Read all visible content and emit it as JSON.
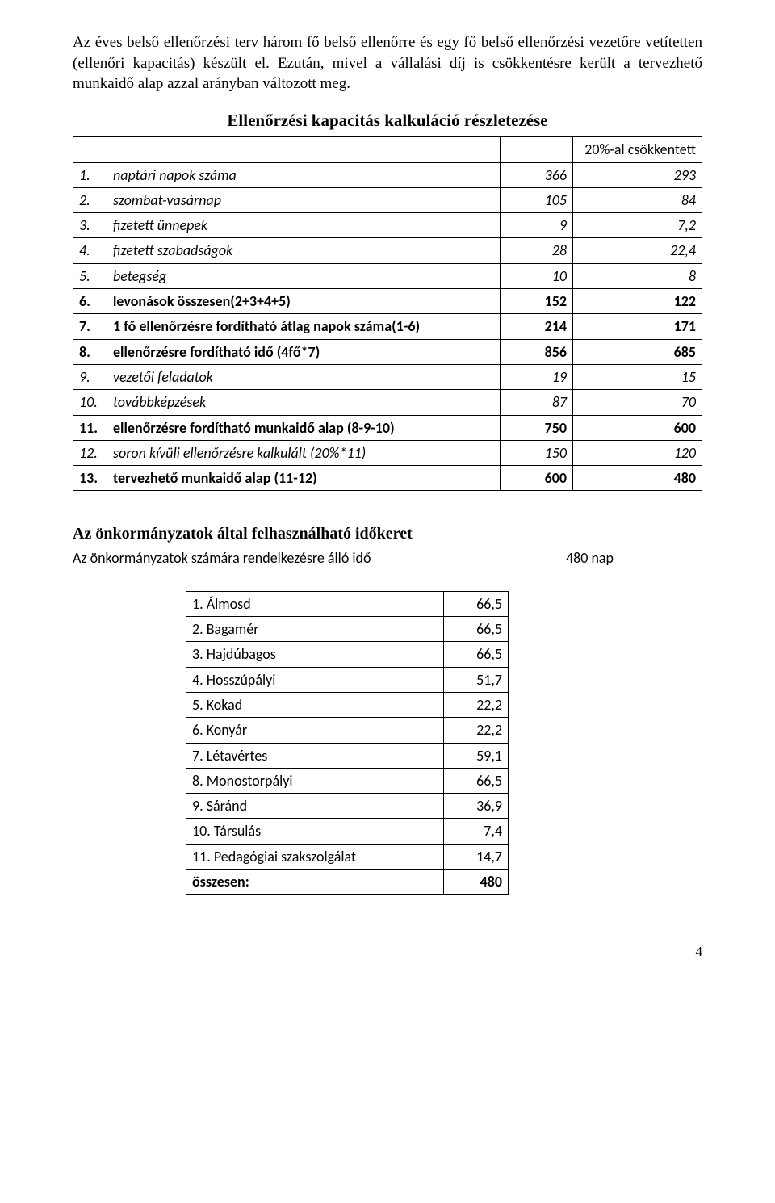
{
  "intro_p1": "Az éves belső ellenőrzési terv három fő belső ellenőrre és egy fő belső ellenőrzési vezetőre vetítetten (ellenőri kapacitás) készült el. Ezután, mivel a vállalási díj is csökkentésre került a tervezhető munkaidő alap azzal arányban változott meg.",
  "table1_title": "Ellenőrzési kapacitás kalkuláció részletezése",
  "table1_header_right": "20%-al csökkentett",
  "table1_rows": [
    {
      "n": "1.",
      "label": "naptári napok száma",
      "v1": "366",
      "v2": "293",
      "style": "italic"
    },
    {
      "n": "2.",
      "label": "szombat-vasárnap",
      "v1": "105",
      "v2": "84",
      "style": "italic"
    },
    {
      "n": "3.",
      "label": "fizetett ünnepek",
      "v1": "9",
      "v2": "7,2",
      "style": "italic"
    },
    {
      "n": "4.",
      "label": "fizetett szabadságok",
      "v1": "28",
      "v2": "22,4",
      "style": "italic"
    },
    {
      "n": "5.",
      "label": "betegség",
      "v1": "10",
      "v2": "8",
      "style": "italic"
    },
    {
      "n": "6.",
      "label": "levonások összesen(2+3+4+5)",
      "v1": "152",
      "v2": "122",
      "style": "bold"
    },
    {
      "n": "7.",
      "label": "1 fő ellenőrzésre fordítható átlag napok száma(1-6)",
      "v1": "214",
      "v2": "171",
      "style": "bold"
    },
    {
      "n": "8.",
      "label": "ellenőrzésre fordítható idő (4fő*7)",
      "v1": "856",
      "v2": "685",
      "style": "bold"
    },
    {
      "n": "9.",
      "label": "vezetői feladatok",
      "v1": "19",
      "v2": "15",
      "style": "italic"
    },
    {
      "n": "10.",
      "label": "továbbképzések",
      "v1": "87",
      "v2": "70",
      "style": "italic"
    },
    {
      "n": "11.",
      "label": "ellenőrzésre fordítható munkaidő alap (8-9-10)",
      "v1": "750",
      "v2": "600",
      "style": "bold"
    },
    {
      "n": "12.",
      "label": "soron kívüli ellenőrzésre kalkulált (20%*11)",
      "v1": "150",
      "v2": "120",
      "style": "italic"
    },
    {
      "n": "13.",
      "label": "tervezhető munkaidő alap (11-12)",
      "v1": "600",
      "v2": "480",
      "style": "bold"
    }
  ],
  "section2_heading": "Az önkormányzatok által felhasználható időkeret",
  "section2_sub_left": "Az önkormányzatok számára rendelkezésre álló idő",
  "section2_sub_right": "480  nap",
  "table2_rows": [
    {
      "label": "1. Álmosd",
      "v": "66,5",
      "style": ""
    },
    {
      "label": "2. Bagamér",
      "v": "66,5",
      "style": ""
    },
    {
      "label": "3. Hajdúbagos",
      "v": "66,5",
      "style": ""
    },
    {
      "label": "4. Hosszúpályi",
      "v": "51,7",
      "style": ""
    },
    {
      "label": "5. Kokad",
      "v": "22,2",
      "style": ""
    },
    {
      "label": "6. Konyár",
      "v": "22,2",
      "style": ""
    },
    {
      "label": "7. Létavértes",
      "v": "59,1",
      "style": ""
    },
    {
      "label": "8. Monostorpályi",
      "v": "66,5",
      "style": ""
    },
    {
      "label": "9. Sáránd",
      "v": "36,9",
      "style": ""
    },
    {
      "label": "10. Társulás",
      "v": "7,4",
      "style": ""
    },
    {
      "label": "11. Pedagógiai szakszolgálat",
      "v": "14,7",
      "style": ""
    },
    {
      "label": "összesen:",
      "v": "480",
      "style": "bold"
    }
  ],
  "page_number": "4"
}
